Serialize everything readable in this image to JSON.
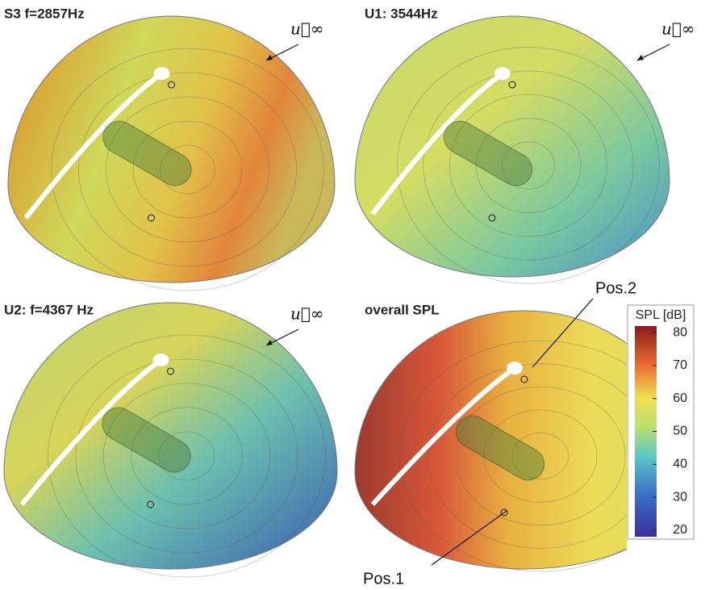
{
  "panels": [
    {
      "title": "S3 f=2857Hz",
      "flow_label": "u⃗∞"
    },
    {
      "title": "U1: 3544Hz",
      "flow_label": "u⃗∞"
    },
    {
      "title": "U2: f=4367 Hz",
      "flow_label": "u⃗∞"
    },
    {
      "title": "overall SPL"
    }
  ],
  "annotations": {
    "pos2": "Pos.2",
    "pos1": "Pos.1"
  },
  "colorbar": {
    "label": "SPL [dB]",
    "lim": [
      18,
      82
    ],
    "ticks": [
      20,
      30,
      40,
      50,
      60,
      70,
      80
    ]
  }
}
